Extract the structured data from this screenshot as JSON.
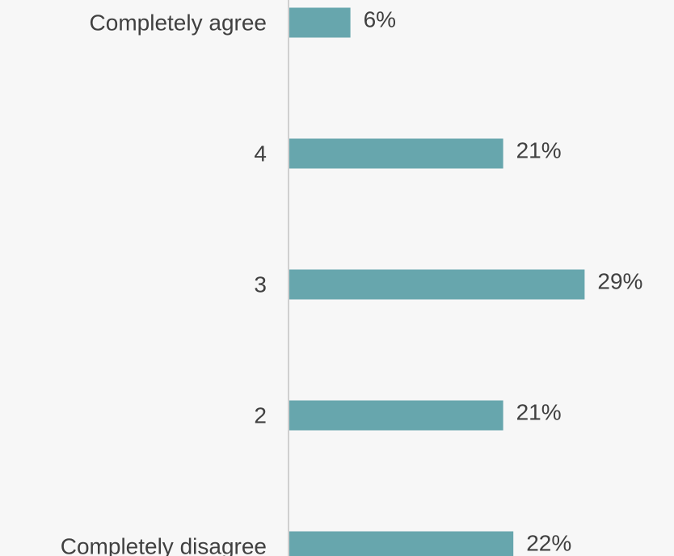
{
  "chart_data": {
    "type": "bar",
    "orientation": "horizontal",
    "categories": [
      "Completely agree",
      "4",
      "3",
      "2",
      "Completely disagree"
    ],
    "values": [
      6,
      21,
      29,
      21,
      22
    ],
    "value_labels": [
      "6%",
      "21%",
      "29%",
      "21%",
      "22%"
    ],
    "unit": "%",
    "title": "",
    "xlabel": "",
    "ylabel": "",
    "xlim": [
      0,
      29
    ],
    "grid": false,
    "legend": "none",
    "bar_color": "#67a6ad",
    "axis_color": "#d0d0d0",
    "text_color": "#404040",
    "background_color": "#f7f7f7"
  }
}
